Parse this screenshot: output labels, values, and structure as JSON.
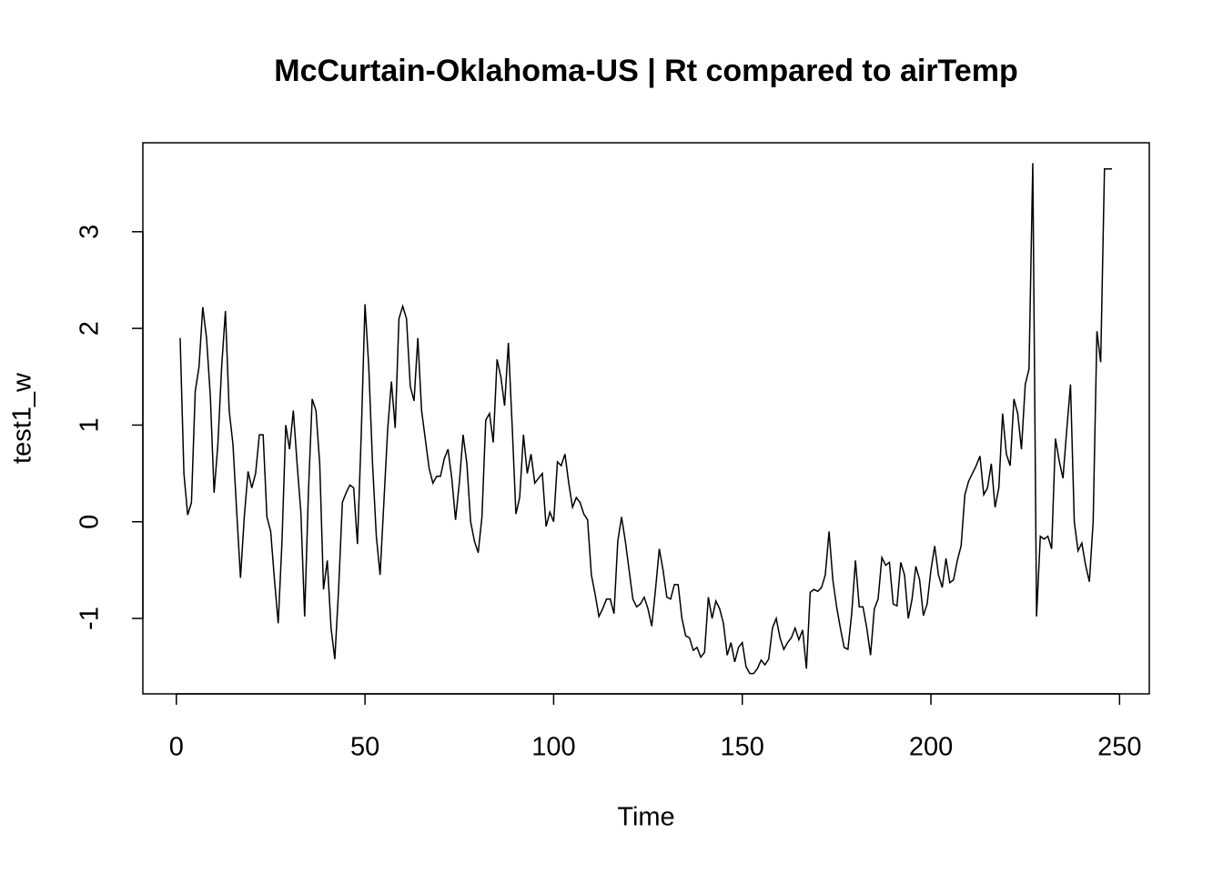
{
  "chart_data": {
    "type": "line",
    "title": "McCurtain-Oklahoma-US | Rt compared to airTemp",
    "x_label": "Time",
    "y_label": "test1_w",
    "x": [
      1,
      2,
      3,
      4,
      5,
      6,
      7,
      8,
      9,
      10,
      11,
      12,
      13,
      14,
      15,
      16,
      17,
      18,
      19,
      20,
      21,
      22,
      23,
      24,
      25,
      26,
      27,
      28,
      29,
      30,
      31,
      32,
      33,
      34,
      35,
      36,
      37,
      38,
      39,
      40,
      41,
      42,
      43,
      44,
      45,
      46,
      47,
      48,
      49,
      50,
      51,
      52,
      53,
      54,
      55,
      56,
      57,
      58,
      59,
      60,
      61,
      62,
      63,
      64,
      65,
      66,
      67,
      68,
      69,
      70,
      71,
      72,
      73,
      74,
      75,
      76,
      77,
      78,
      79,
      80,
      81,
      82,
      83,
      84,
      85,
      86,
      87,
      88,
      89,
      90,
      91,
      92,
      93,
      94,
      95,
      96,
      97,
      98,
      99,
      100,
      101,
      102,
      103,
      104,
      105,
      106,
      107,
      108,
      109,
      110,
      111,
      112,
      113,
      114,
      115,
      116,
      117,
      118,
      119,
      120,
      121,
      122,
      123,
      124,
      125,
      126,
      127,
      128,
      129,
      130,
      131,
      132,
      133,
      134,
      135,
      136,
      137,
      138,
      139,
      140,
      141,
      142,
      143,
      144,
      145,
      146,
      147,
      148,
      149,
      150,
      151,
      152,
      153,
      154,
      155,
      156,
      157,
      158,
      159,
      160,
      161,
      162,
      163,
      164,
      165,
      166,
      167,
      168,
      169,
      170,
      171,
      172,
      173,
      174,
      175,
      176,
      177,
      178,
      179,
      180,
      181,
      182,
      183,
      184,
      185,
      186,
      187,
      188,
      189,
      190,
      191,
      192,
      193,
      194,
      195,
      196,
      197,
      198,
      199,
      200,
      201,
      202,
      203,
      204,
      205,
      206,
      207,
      208,
      209,
      210,
      211,
      212,
      213,
      214,
      215,
      216,
      217,
      218,
      219,
      220,
      221,
      222,
      223,
      224,
      225,
      226,
      227,
      228,
      229,
      230,
      231,
      232,
      233,
      234,
      235,
      236,
      237,
      238,
      239,
      240,
      241,
      242,
      243,
      244,
      245,
      246,
      247,
      248
    ],
    "series": [
      {
        "name": "test1_w",
        "color": "#000000",
        "values": [
          1.9,
          0.5,
          0.07,
          0.2,
          1.35,
          1.6,
          2.22,
          1.9,
          1.3,
          0.3,
          0.8,
          1.6,
          2.18,
          1.15,
          0.8,
          0.1,
          -0.58,
          0.05,
          0.52,
          0.35,
          0.5,
          0.9,
          0.9,
          0.05,
          -0.1,
          -0.6,
          -1.05,
          -0.2,
          1.0,
          0.75,
          1.15,
          0.6,
          0.1,
          -0.98,
          0.3,
          1.27,
          1.15,
          0.6,
          -0.7,
          -0.4,
          -1.1,
          -1.42,
          -0.7,
          0.2,
          0.3,
          0.38,
          0.35,
          -0.23,
          0.9,
          2.25,
          1.6,
          0.6,
          -0.15,
          -0.55,
          0.2,
          0.95,
          1.45,
          0.97,
          2.1,
          2.23,
          2.1,
          1.4,
          1.25,
          1.9,
          1.15,
          0.85,
          0.55,
          0.4,
          0.47,
          0.47,
          0.65,
          0.75,
          0.45,
          0.02,
          0.4,
          0.9,
          0.6,
          0.0,
          -0.2,
          -0.32,
          0.05,
          1.05,
          1.12,
          0.82,
          1.68,
          1.5,
          1.2,
          1.85,
          1.0,
          0.08,
          0.25,
          0.9,
          0.5,
          0.7,
          0.4,
          0.45,
          0.5,
          -0.05,
          0.1,
          0.0,
          0.62,
          0.58,
          0.7,
          0.4,
          0.15,
          0.25,
          0.2,
          0.08,
          0.02,
          -0.55,
          -0.75,
          -0.98,
          -0.9,
          -0.8,
          -0.8,
          -0.95,
          -0.2,
          0.05,
          -0.2,
          -0.5,
          -0.8,
          -0.88,
          -0.85,
          -0.78,
          -0.9,
          -1.08,
          -0.7,
          -0.28,
          -0.5,
          -0.78,
          -0.8,
          -0.65,
          -0.65,
          -1.0,
          -1.18,
          -1.2,
          -1.33,
          -1.3,
          -1.4,
          -1.35,
          -0.78,
          -1.0,
          -0.82,
          -0.9,
          -1.05,
          -1.38,
          -1.25,
          -1.45,
          -1.3,
          -1.25,
          -1.5,
          -1.57,
          -1.57,
          -1.52,
          -1.43,
          -1.48,
          -1.42,
          -1.1,
          -1.0,
          -1.2,
          -1.32,
          -1.25,
          -1.2,
          -1.1,
          -1.22,
          -1.12,
          -1.52,
          -0.73,
          -0.7,
          -0.72,
          -0.68,
          -0.55,
          -0.1,
          -0.6,
          -0.88,
          -1.1,
          -1.3,
          -1.32,
          -0.95,
          -0.4,
          -0.88,
          -0.88,
          -1.1,
          -1.38,
          -0.9,
          -0.8,
          -0.37,
          -0.45,
          -0.42,
          -0.85,
          -0.87,
          -0.42,
          -0.55,
          -1.0,
          -0.8,
          -0.46,
          -0.6,
          -0.97,
          -0.85,
          -0.5,
          -0.25,
          -0.55,
          -0.68,
          -0.38,
          -0.63,
          -0.6,
          -0.4,
          -0.25,
          0.28,
          0.42,
          0.5,
          0.58,
          0.68,
          0.28,
          0.35,
          0.6,
          0.15,
          0.35,
          1.12,
          0.7,
          0.58,
          1.27,
          1.12,
          0.75,
          1.42,
          1.58,
          3.71,
          -0.98,
          -0.15,
          -0.18,
          -0.15,
          -0.28,
          0.86,
          0.63,
          0.45,
          0.95,
          1.42,
          0.0,
          -0.3,
          -0.22,
          -0.45,
          -0.62,
          0.0,
          1.97,
          1.65,
          3.65,
          3.65,
          3.65
        ]
      }
    ],
    "xlim": [
      -8.88,
      257.88
    ],
    "xticks": [
      0,
      50,
      100,
      150,
      200,
      250
    ],
    "ylim": [
      -1.78,
      3.92
    ],
    "yticks": [
      -1,
      0,
      1,
      2,
      3
    ]
  }
}
